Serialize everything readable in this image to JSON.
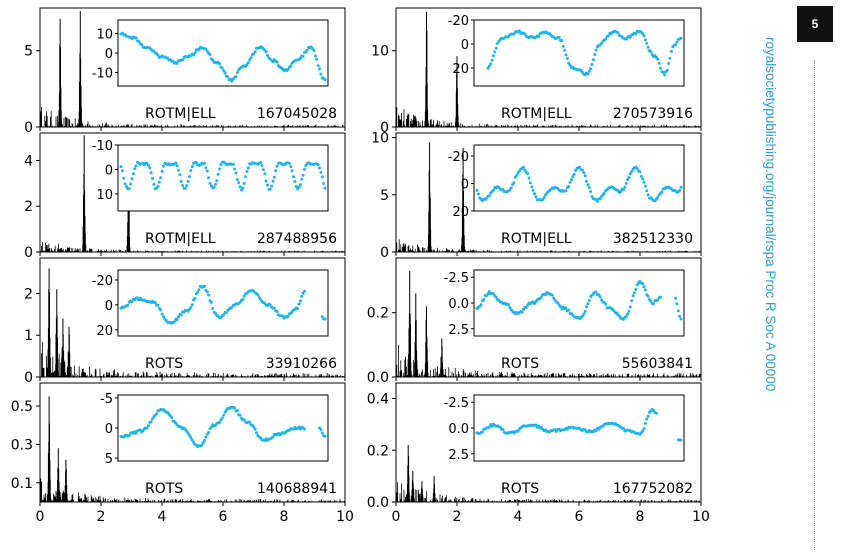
{
  "journal": {
    "page_number": "5",
    "side_url": "royalsocietypublishing.org/journal/rspa",
    "side_journal": "Proc R Soc A 00000"
  },
  "colors": {
    "inset": "#1fb4ea",
    "periodogram": "#000000",
    "axis": "#000000",
    "side_text": "#2a9fd6"
  },
  "chart_data": [
    {
      "type": "line",
      "row": 0,
      "col": 0,
      "label": "ROTM|ELL",
      "id": "167045028",
      "ylim": [
        0,
        7.8
      ],
      "yticks": [
        0,
        5
      ],
      "xlim": [
        0,
        10
      ],
      "peaks": [
        [
          0.66,
          7.1
        ],
        [
          1.32,
          7.6
        ]
      ],
      "bg": 0.6,
      "inset": {
        "ylim": [
          17,
          -17
        ],
        "yticks": [
          -10,
          0,
          10
        ],
        "invert": true,
        "profile": [
          [
            0.0,
            10.0
          ],
          [
            0.06,
            8.0
          ],
          [
            0.12,
            3.0
          ],
          [
            0.2,
            -2.0
          ],
          [
            0.27,
            -5.0
          ],
          [
            0.33,
            -2.0
          ],
          [
            0.4,
            3.0
          ],
          [
            0.47,
            -5.0
          ],
          [
            0.54,
            -14.0
          ],
          [
            0.6,
            -7.0
          ],
          [
            0.68,
            3.0
          ],
          [
            0.75,
            -4.0
          ],
          [
            0.8,
            -9.0
          ],
          [
            0.87,
            -3.0
          ],
          [
            0.93,
            3.0
          ],
          [
            1.0,
            -14.0
          ]
        ]
      }
    },
    {
      "type": "line",
      "row": 0,
      "col": 1,
      "label": "ROTM|ELL",
      "id": "270573916",
      "ylim": [
        0,
        15.6
      ],
      "yticks": [
        0,
        10
      ],
      "xlim": [
        0,
        10
      ],
      "peaks": [
        [
          1.0,
          15.1
        ],
        [
          2.0,
          9.3
        ]
      ],
      "bg": 1.2,
      "inset": {
        "ylim": [
          -20,
          35
        ],
        "yticks": [
          -20,
          0,
          20
        ],
        "invert": true,
        "profile": [
          [
            0.05,
            20.0
          ],
          [
            0.12,
            -5.0
          ],
          [
            0.2,
            -10.0
          ],
          [
            0.28,
            -5.0
          ],
          [
            0.33,
            -10.0
          ],
          [
            0.4,
            -5.0
          ],
          [
            0.47,
            20.0
          ],
          [
            0.54,
            25.0
          ],
          [
            0.6,
            0.0
          ],
          [
            0.67,
            -10.0
          ],
          [
            0.73,
            -5.0
          ],
          [
            0.8,
            -10.0
          ],
          [
            0.87,
            10.0
          ],
          [
            0.92,
            25.0
          ],
          [
            0.97,
            0.0
          ],
          [
            1.0,
            -5.0
          ]
        ]
      }
    },
    {
      "type": "line",
      "row": 1,
      "col": 0,
      "label": "ROTM|ELL",
      "id": "287488956",
      "ylim": [
        0,
        5.2
      ],
      "yticks": [
        0,
        2,
        4
      ],
      "xlim": [
        0,
        10
      ],
      "peaks": [
        [
          1.45,
          5.1
        ],
        [
          2.9,
          3.9
        ]
      ],
      "bg": 0.25,
      "inset": {
        "ylim": [
          -10,
          17
        ],
        "yticks": [
          -10,
          0,
          10
        ],
        "invert": true,
        "profile": "wavy"
      }
    },
    {
      "type": "line",
      "row": 1,
      "col": 1,
      "label": "ROTM|ELL",
      "id": "382512330",
      "ylim": [
        0,
        10.4
      ],
      "yticks": [
        0,
        5,
        10
      ],
      "xlim": [
        0,
        10
      ],
      "peaks": [
        [
          1.1,
          9.6
        ],
        [
          2.2,
          9.1
        ]
      ],
      "bg": 0.5,
      "inset": {
        "ylim": [
          -28,
          20
        ],
        "yticks": [
          -20,
          0,
          20
        ],
        "invert": true,
        "profile": "double"
      }
    },
    {
      "type": "line",
      "row": 2,
      "col": 0,
      "label": "ROTS",
      "id": "33910266",
      "ylim": [
        0,
        2.85
      ],
      "yticks": [
        0,
        1,
        2
      ],
      "xlim": [
        0,
        10
      ],
      "peaks": [
        [
          0.3,
          2.6
        ],
        [
          0.55,
          2.1
        ],
        [
          0.75,
          1.4
        ],
        [
          0.95,
          1.2
        ]
      ],
      "bg": 0.4,
      "inset": {
        "ylim": [
          -28,
          25
        ],
        "yticks": [
          -20,
          0,
          20
        ],
        "invert": true,
        "profile": [
          [
            0.0,
            2.0
          ],
          [
            0.08,
            -5.0
          ],
          [
            0.16,
            -2.0
          ],
          [
            0.24,
            15.0
          ],
          [
            0.32,
            5.0
          ],
          [
            0.4,
            -15.0
          ],
          [
            0.48,
            10.0
          ],
          [
            0.56,
            0.0
          ],
          [
            0.64,
            -12.0
          ],
          [
            0.72,
            0.0
          ],
          [
            0.8,
            10.0
          ],
          [
            0.86,
            3.0
          ],
          [
            0.9,
            -10.0
          ]
        ],
        "tail": [
          [
            0.98,
            10.0
          ],
          [
            1.0,
            12.0
          ]
        ]
      }
    },
    {
      "type": "line",
      "row": 2,
      "col": 1,
      "label": "ROTS",
      "id": "55603841",
      "ylim": [
        0,
        0.37
      ],
      "yticks": [
        0.0,
        0.2
      ],
      "xlim": [
        0,
        10
      ],
      "peaks": [
        [
          0.45,
          0.33
        ],
        [
          0.65,
          0.26
        ],
        [
          1.0,
          0.22
        ],
        [
          1.5,
          0.12
        ]
      ],
      "bg": 0.05,
      "inset": {
        "ylim": [
          -3.2,
          3.2
        ],
        "yticks": [
          -2.5,
          0.0,
          2.5
        ],
        "invert": true,
        "profile": [
          [
            0.0,
            0.5
          ],
          [
            0.06,
            -1.0
          ],
          [
            0.13,
            0.0
          ],
          [
            0.2,
            1.0
          ],
          [
            0.27,
            0.0
          ],
          [
            0.35,
            -1.0
          ],
          [
            0.42,
            0.5
          ],
          [
            0.5,
            1.5
          ],
          [
            0.58,
            -1.0
          ],
          [
            0.65,
            0.5
          ],
          [
            0.72,
            1.5
          ],
          [
            0.8,
            -2.0
          ],
          [
            0.86,
            0.0
          ],
          [
            0.9,
            -0.5
          ]
        ],
        "tail": [
          [
            0.97,
            -0.5
          ],
          [
            1.0,
            1.5
          ]
        ]
      }
    },
    {
      "type": "line",
      "row": 3,
      "col": 0,
      "label": "ROTS",
      "id": "140688941",
      "ylim": [
        0,
        0.62
      ],
      "yticks": [
        0.1,
        0.3,
        0.5
      ],
      "xlim": [
        0,
        10
      ],
      "peaks": [
        [
          0.3,
          0.55
        ],
        [
          0.6,
          0.28
        ],
        [
          0.85,
          0.22
        ]
      ],
      "bg": 0.06,
      "inset": {
        "ylim": [
          -5.5,
          5.5
        ],
        "yticks": [
          -5,
          0,
          5
        ],
        "invert": true,
        "profile": [
          [
            0.0,
            1.5
          ],
          [
            0.1,
            0.5
          ],
          [
            0.2,
            -3.0
          ],
          [
            0.3,
            0.0
          ],
          [
            0.38,
            3.0
          ],
          [
            0.46,
            -0.5
          ],
          [
            0.54,
            -3.5
          ],
          [
            0.62,
            -1.0
          ],
          [
            0.7,
            2.0
          ],
          [
            0.78,
            1.0
          ],
          [
            0.86,
            0.0
          ],
          [
            0.9,
            0.0
          ]
        ],
        "tail": [
          [
            0.97,
            0.0
          ],
          [
            1.0,
            1.5
          ]
        ]
      }
    },
    {
      "type": "line",
      "row": 3,
      "col": 1,
      "label": "ROTS",
      "id": "167752082",
      "ylim": [
        0,
        0.46
      ],
      "yticks": [
        0.0,
        0.2,
        0.4
      ],
      "xlim": [
        0,
        10
      ],
      "peaks": [
        [
          0.4,
          0.22
        ],
        [
          0.55,
          0.12
        ],
        [
          0.85,
          0.08
        ],
        [
          1.25,
          0.1
        ]
      ],
      "bg": 0.04,
      "inset": {
        "ylim": [
          -3.2,
          3.2
        ],
        "yticks": [
          -2.5,
          0.0,
          2.5
        ],
        "invert": true,
        "profile": [
          [
            0.0,
            0.5
          ],
          [
            0.08,
            -0.3
          ],
          [
            0.16,
            0.5
          ],
          [
            0.26,
            -0.3
          ],
          [
            0.36,
            0.3
          ],
          [
            0.46,
            0.0
          ],
          [
            0.56,
            0.3
          ],
          [
            0.66,
            -0.5
          ],
          [
            0.74,
            0.3
          ],
          [
            0.8,
            0.5
          ],
          [
            0.86,
            -1.8
          ],
          [
            0.88,
            -1.5
          ]
        ],
        "tail": [
          [
            0.98,
            1.0
          ],
          [
            1.0,
            1.2
          ]
        ]
      }
    }
  ],
  "x_axis": {
    "ticks": [
      0,
      2,
      4,
      6,
      8,
      10
    ]
  }
}
